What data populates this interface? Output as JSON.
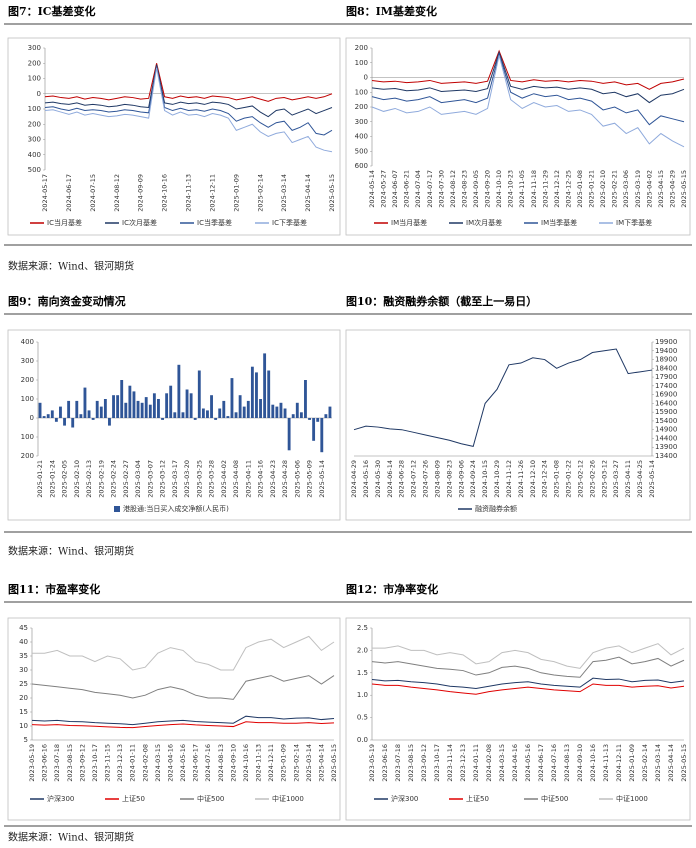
{
  "chart_data": [
    {
      "type": "line",
      "title": "图7：IC基差变化",
      "legend": "bottom",
      "categories": [
        "2024-05-17",
        null,
        null,
        "2024-06-17",
        null,
        null,
        "2024-07-15",
        null,
        null,
        "2024-08-12",
        null,
        null,
        "2024-09-09",
        null,
        null,
        "2024-10-16",
        null,
        null,
        "2024-11-13",
        null,
        null,
        "2024-12-11",
        null,
        null,
        "2025-01-09",
        null,
        null,
        "2025-02-14",
        null,
        null,
        "2025-03-14",
        null,
        null,
        "2025-04-14",
        null,
        null,
        "2025-05-15"
      ],
      "ylim": [
        -500,
        300
      ],
      "yticks": [
        300,
        200,
        100,
        0,
        {
          "value": -100,
          "label": "100"
        },
        {
          "value": -200,
          "label": "200"
        },
        {
          "value": -300,
          "label": "300"
        },
        {
          "value": -400,
          "label": "400"
        },
        {
          "value": -500,
          "label": "500"
        }
      ],
      "series": [
        {
          "name": "IC当月基差",
          "color": "#c00000",
          "values": [
            -20,
            -15,
            -25,
            -30,
            -20,
            -35,
            -25,
            -30,
            -40,
            -30,
            -20,
            -25,
            -35,
            -30,
            200,
            -20,
            -30,
            -15,
            -25,
            -20,
            -30,
            -15,
            -20,
            -25,
            -40,
            -30,
            -20,
            -35,
            -50,
            -30,
            -25,
            -40,
            -30,
            -20,
            -30,
            -20,
            0
          ]
        },
        {
          "name": "IC次月基差",
          "color": "#1f3864",
          "values": [
            -60,
            -55,
            -65,
            -70,
            -60,
            -75,
            -70,
            -75,
            -85,
            -80,
            -70,
            -75,
            -85,
            -90,
            190,
            -60,
            -70,
            -55,
            -65,
            -60,
            -70,
            -55,
            -60,
            -70,
            -100,
            -90,
            -80,
            -120,
            -150,
            -110,
            -100,
            -140,
            -120,
            -100,
            -130,
            -110,
            -90
          ]
        },
        {
          "name": "IC当季基差",
          "color": "#2f5597",
          "values": [
            -90,
            -85,
            -100,
            -110,
            -95,
            -110,
            -105,
            -110,
            -120,
            -115,
            -105,
            -110,
            -120,
            -125,
            180,
            -90,
            -110,
            -95,
            -110,
            -105,
            -115,
            -100,
            -110,
            -130,
            -180,
            -160,
            -150,
            -190,
            -220,
            -190,
            -180,
            -240,
            -220,
            -190,
            -260,
            -270,
            -240
          ]
        },
        {
          "name": "IC下季基差",
          "color": "#8faadc",
          "values": [
            -110,
            -105,
            -120,
            -135,
            -120,
            -140,
            -130,
            -140,
            -150,
            -145,
            -135,
            -140,
            -150,
            -160,
            170,
            -110,
            -140,
            -120,
            -140,
            -135,
            -150,
            -130,
            -140,
            -160,
            -240,
            -220,
            -200,
            -250,
            -280,
            -260,
            -250,
            -320,
            -300,
            -280,
            -350,
            -370,
            -380
          ]
        }
      ]
    },
    {
      "type": "line",
      "title": "图8：IM基差变化",
      "legend": "bottom",
      "categories": [
        "2024-05-14",
        "2024-05-27",
        "2024-06-07",
        "2024-06-21",
        "2024-07-04",
        "2024-07-17",
        "2024-07-30",
        "2024-08-12",
        "2024-08-23",
        "2024-09-05",
        "2024-09-20",
        "2024-10-10",
        "2024-10-23",
        "2024-11-05",
        "2024-11-18",
        "2024-11-29",
        "2024-12-12",
        "2024-12-25",
        "2025-01-08",
        "2025-01-21",
        "2025-02-10",
        "2025-02-21",
        "2025-03-06",
        "2025-03-19",
        "2025-04-02",
        "2025-04-15",
        "2025-04-29",
        "2025-05-15"
      ],
      "ylim": [
        -600,
        200
      ],
      "yticks": [
        200,
        100,
        0,
        {
          "value": -100,
          "label": "100"
        },
        {
          "value": -200,
          "label": "200"
        },
        {
          "value": -300,
          "label": "300"
        },
        {
          "value": -400,
          "label": "400"
        },
        {
          "value": -500,
          "label": "500"
        },
        {
          "value": -600,
          "label": "600"
        }
      ],
      "series": [
        {
          "name": "IM当月基差",
          "color": "#c00000",
          "values": [
            -20,
            -30,
            -25,
            -35,
            -30,
            -20,
            -40,
            -35,
            -30,
            -40,
            -25,
            180,
            -20,
            -30,
            -15,
            -25,
            -20,
            -30,
            -20,
            -25,
            -40,
            -30,
            -50,
            -40,
            -80,
            -40,
            -30,
            -10
          ]
        },
        {
          "name": "IM次月基差",
          "color": "#1f3864",
          "values": [
            -70,
            -80,
            -75,
            -90,
            -85,
            -70,
            -95,
            -90,
            -85,
            -95,
            -75,
            170,
            -60,
            -80,
            -60,
            -70,
            -65,
            -80,
            -70,
            -80,
            -110,
            -100,
            -130,
            -110,
            -170,
            -120,
            -110,
            -80
          ]
        },
        {
          "name": "IM当季基差",
          "color": "#2f5597",
          "values": [
            -130,
            -150,
            -140,
            -160,
            -150,
            -130,
            -170,
            -160,
            -150,
            -170,
            -140,
            160,
            -100,
            -140,
            -110,
            -130,
            -120,
            -150,
            -140,
            -160,
            -220,
            -200,
            -240,
            -220,
            -320,
            -260,
            -280,
            -300
          ]
        },
        {
          "name": "IM下季基差",
          "color": "#8faadc",
          "values": [
            -200,
            -230,
            -210,
            -240,
            -230,
            -200,
            -250,
            -240,
            -230,
            -250,
            -210,
            150,
            -150,
            -210,
            -170,
            -200,
            -190,
            -230,
            -220,
            -250,
            -330,
            -310,
            -380,
            -340,
            -450,
            -380,
            -430,
            -470
          ]
        }
      ]
    },
    {
      "type": "bar",
      "title": "图9：南向资金变动情况",
      "legend": "bottom",
      "categories": [
        "2025-01-21",
        null,
        null,
        "2025-01-24",
        null,
        null,
        "2025-02-05",
        null,
        null,
        "2025-02-10",
        null,
        null,
        "2025-02-13",
        null,
        null,
        "2025-02-19",
        null,
        null,
        "2025-02-24",
        null,
        null,
        "2025-02-27",
        null,
        null,
        "2025-03-04",
        null,
        null,
        "2025-03-07",
        null,
        null,
        "2025-03-12",
        null,
        null,
        "2025-03-17",
        null,
        null,
        "2025-03-20",
        null,
        null,
        "2025-03-25",
        null,
        null,
        "2025-03-28",
        null,
        null,
        "2025-04-02",
        null,
        null,
        "2025-04-08",
        null,
        null,
        "2025-04-11",
        null,
        null,
        "2025-04-16",
        null,
        null,
        "2025-04-23",
        null,
        null,
        "2025-04-28",
        null,
        null,
        "2025-05-06",
        null,
        null,
        "2025-05-09",
        null,
        null,
        "2025-05-14",
        null,
        null
      ],
      "ylim": [
        -200,
        400
      ],
      "yticks": [
        400,
        300,
        200,
        100,
        0,
        {
          "value": -100,
          "label": "100"
        },
        {
          "value": -200,
          "label": "200"
        }
      ],
      "series": [
        {
          "name": "港股通:当日买入成交净额(人民币)",
          "color": "#2f5597",
          "values": [
            80,
            10,
            20,
            40,
            -20,
            60,
            -40,
            90,
            -50,
            90,
            20,
            160,
            40,
            -10,
            90,
            60,
            100,
            -40,
            120,
            120,
            200,
            80,
            170,
            140,
            90,
            80,
            110,
            70,
            130,
            100,
            -10,
            130,
            170,
            30,
            280,
            30,
            150,
            130,
            -10,
            250,
            50,
            40,
            120,
            -10,
            50,
            90,
            10,
            210,
            30,
            120,
            60,
            90,
            270,
            240,
            100,
            340,
            250,
            70,
            60,
            80,
            50,
            -170,
            20,
            80,
            30,
            200,
            -10,
            -120,
            -20,
            -180,
            20,
            60
          ]
        }
      ]
    },
    {
      "type": "line",
      "title": "图10：融资融券余额（截至上一易日）",
      "legend": "bottom",
      "y_axis_side": "right",
      "categories": [
        "2024-04-29",
        "2024-05-16",
        "2024-05-30",
        "2024-06-14",
        "2024-06-28",
        "2024-07-12",
        "2024-07-26",
        "2024-08-09",
        "2024-08-23",
        "2024-09-06",
        "2024-09-24",
        "2024-10-15",
        "2024-10-29",
        "2024-11-12",
        "2024-11-26",
        "2024-12-10",
        "2024-12-24",
        "2025-01-08",
        "2025-01-22",
        "2025-02-12",
        "2025-02-26",
        "2025-03-12",
        "2025-03-27",
        "2025-04-11",
        "2025-04-25",
        "2025-05-14"
      ],
      "ylim": [
        13400,
        19900
      ],
      "yticks": [
        19900,
        19400,
        18900,
        18400,
        17900,
        17400,
        16900,
        16400,
        15900,
        15400,
        14900,
        14400,
        13900,
        13400
      ],
      "series": [
        {
          "name": "融资融券余额",
          "color": "#1f3864",
          "values": [
            14900,
            15100,
            15050,
            14950,
            14900,
            14750,
            14600,
            14450,
            14300,
            14100,
            13950,
            16400,
            17200,
            18600,
            18700,
            19000,
            18900,
            18400,
            18700,
            18900,
            19300,
            19400,
            19500,
            18100,
            18200,
            18300
          ]
        }
      ]
    },
    {
      "type": "line",
      "title": "图11：市盈率变化",
      "legend": "bottom",
      "categories": [
        "2023-05-19",
        "2023-06-16",
        "2023-07-18",
        "2023-08-15",
        "2023-09-12",
        "2023-10-17",
        "2023-11-15",
        "2023-12-13",
        "2024-01-11",
        "2024-02-08",
        "2024-03-15",
        "2024-04-16",
        "2024-05-16",
        "2024-06-17",
        "2024-07-16",
        "2024-08-13",
        "2024-09-10",
        "2024-10-16",
        "2024-11-13",
        "2024-12-11",
        "2025-01-09",
        "2025-02-14",
        "2025-03-14",
        "2025-04-14",
        "2025-05-15"
      ],
      "ylim": [
        5,
        45
      ],
      "yticks": [
        45,
        40,
        35,
        30,
        25,
        20,
        15,
        10,
        5
      ],
      "series": [
        {
          "name": "沪深300",
          "color": "#1f3864",
          "values": [
            12,
            11.8,
            12,
            11.6,
            11.5,
            11.2,
            11,
            10.8,
            10.5,
            11,
            11.5,
            11.8,
            12,
            11.6,
            11.4,
            11.2,
            11,
            13.5,
            13,
            13,
            12.5,
            12.8,
            12.9,
            12.3,
            12.7
          ]
        },
        {
          "name": "上证50",
          "color": "#e00000",
          "values": [
            10.5,
            10.3,
            10.5,
            10.2,
            10.1,
            9.9,
            9.7,
            9.5,
            9.4,
            9.8,
            10.2,
            10.5,
            10.7,
            10.4,
            10.2,
            10,
            9.8,
            11.5,
            11.2,
            11.2,
            11,
            11,
            11.2,
            10.9,
            11.1
          ]
        },
        {
          "name": "中证500",
          "color": "#7f7f7f",
          "values": [
            25,
            24.5,
            24,
            23.5,
            23,
            22,
            21.5,
            21,
            20,
            21,
            23,
            24,
            23,
            21,
            20,
            20,
            19.5,
            26,
            27,
            28,
            26,
            27,
            28,
            25,
            28
          ]
        },
        {
          "name": "中证1000",
          "color": "#bfbfbf",
          "values": [
            36,
            36,
            37,
            35,
            35,
            33,
            35,
            34,
            30,
            31,
            36,
            38,
            37,
            33,
            32,
            30,
            30,
            38,
            40,
            41,
            38,
            40,
            42,
            37,
            40
          ]
        }
      ]
    },
    {
      "type": "line",
      "title": "图12：市净率变化",
      "legend": "bottom",
      "categories": [
        "2023-05-19",
        "2023-06-16",
        "2023-07-18",
        "2023-08-15",
        "2023-09-12",
        "2023-10-17",
        "2023-11-14",
        "2023-12-13",
        "2024-01-11",
        "2024-02-08",
        "2024-03-15",
        "2024-04-16",
        "2024-05-16",
        "2024-06-17",
        "2024-07-16",
        "2024-08-13",
        "2024-09-10",
        "2024-10-16",
        "2024-11-13",
        "2024-12-11",
        "2025-01-09",
        "2025-02-14",
        "2025-03-14",
        "2025-04-14",
        "2025-05-15"
      ],
      "ylim": [
        0,
        2.5
      ],
      "yticks": [
        2.5,
        {
          "value": 2,
          "label": "2.0"
        },
        1.5,
        {
          "value": 1,
          "label": "1.0"
        },
        0.5,
        {
          "value": 0,
          "label": "0.0"
        }
      ],
      "series": [
        {
          "name": "沪深300",
          "color": "#1f3864",
          "values": [
            1.35,
            1.32,
            1.33,
            1.3,
            1.28,
            1.25,
            1.2,
            1.18,
            1.15,
            1.2,
            1.25,
            1.28,
            1.3,
            1.25,
            1.22,
            1.2,
            1.18,
            1.38,
            1.35,
            1.36,
            1.3,
            1.33,
            1.34,
            1.28,
            1.32
          ]
        },
        {
          "name": "上证50",
          "color": "#e00000",
          "values": [
            1.25,
            1.22,
            1.22,
            1.18,
            1.15,
            1.12,
            1.08,
            1.05,
            1.02,
            1.08,
            1.12,
            1.15,
            1.18,
            1.15,
            1.12,
            1.1,
            1.08,
            1.25,
            1.22,
            1.22,
            1.18,
            1.2,
            1.21,
            1.16,
            1.2
          ]
        },
        {
          "name": "中证500",
          "color": "#7f7f7f",
          "values": [
            1.75,
            1.72,
            1.75,
            1.7,
            1.65,
            1.6,
            1.58,
            1.55,
            1.45,
            1.5,
            1.62,
            1.65,
            1.6,
            1.5,
            1.45,
            1.42,
            1.4,
            1.75,
            1.78,
            1.85,
            1.7,
            1.75,
            1.82,
            1.65,
            1.78
          ]
        },
        {
          "name": "中证1000",
          "color": "#bfbfbf",
          "values": [
            2.05,
            2.05,
            2.1,
            2,
            2,
            1.9,
            1.95,
            1.9,
            1.7,
            1.75,
            1.95,
            2,
            1.95,
            1.8,
            1.75,
            1.65,
            1.6,
            1.95,
            2.05,
            2.1,
            1.95,
            2.05,
            2.15,
            1.9,
            2.05
          ]
        }
      ]
    }
  ],
  "sources": [
    "数据来源：Wind、银河期货",
    "数据来源：Wind、银河期货",
    "数据来源：Wind、银河期货"
  ]
}
